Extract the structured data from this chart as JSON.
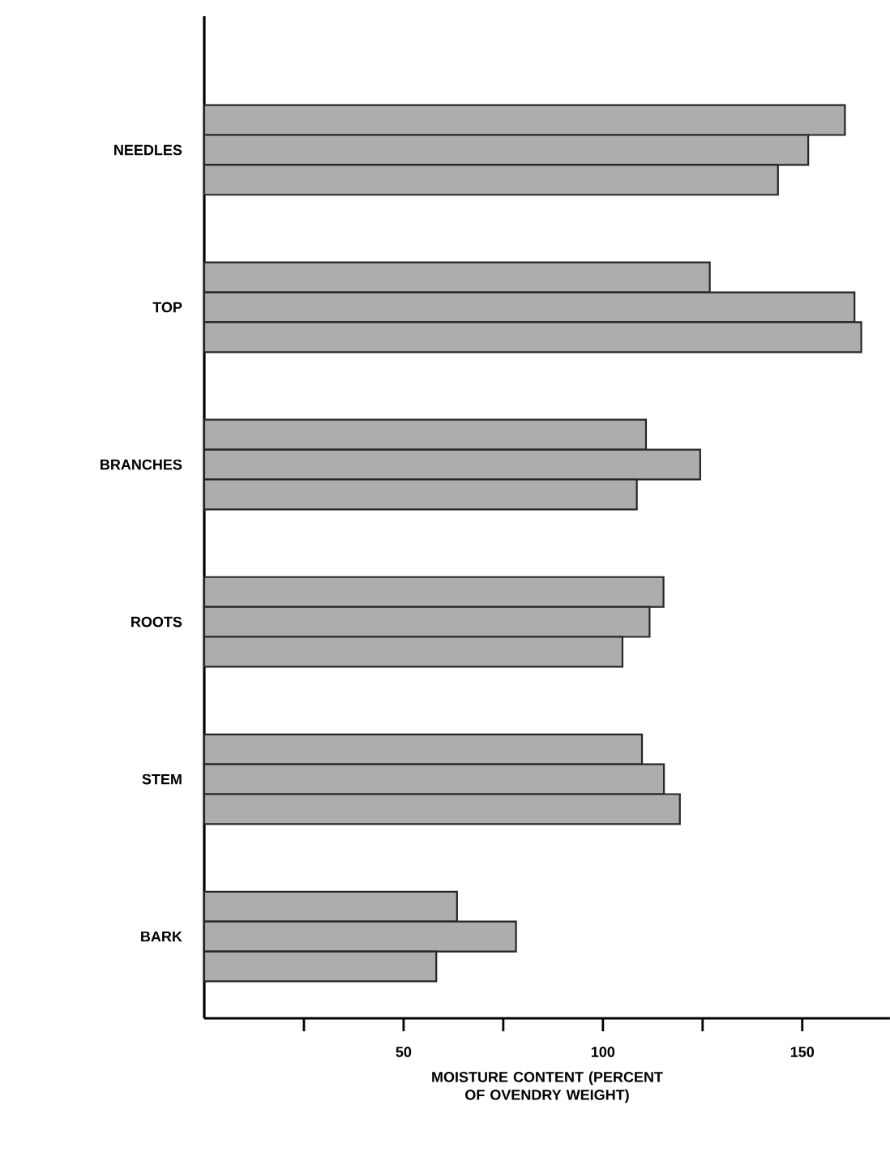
{
  "chart_data": {
    "type": "bar",
    "orientation": "horizontal",
    "categories": [
      "NEEDLES",
      "TOP",
      "BRANCHES",
      "ROOTS",
      "STEM",
      "BARK"
    ],
    "series": [
      {
        "color": "#adadad",
        "values": [
          160.7,
          126.8,
          110.8,
          115.2,
          109.8,
          63.4
        ]
      },
      {
        "color": "#adadad",
        "values": [
          151.5,
          163.1,
          124.4,
          111.7,
          115.3,
          78.2
        ]
      },
      {
        "color": "#adadad",
        "values": [
          143.9,
          164.8,
          108.5,
          104.9,
          119.3,
          58.2
        ]
      }
    ],
    "xlabel": "MOISTURE CONTENT (PERCENT OF OVENDRY WEIGHT)",
    "xlim": [
      0,
      172
    ],
    "xticks": [
      {
        "value": 25,
        "label": null
      },
      50,
      {
        "value": 75,
        "label": null
      },
      100,
      {
        "value": 125,
        "label": null
      },
      150
    ],
    "grid": false
  }
}
